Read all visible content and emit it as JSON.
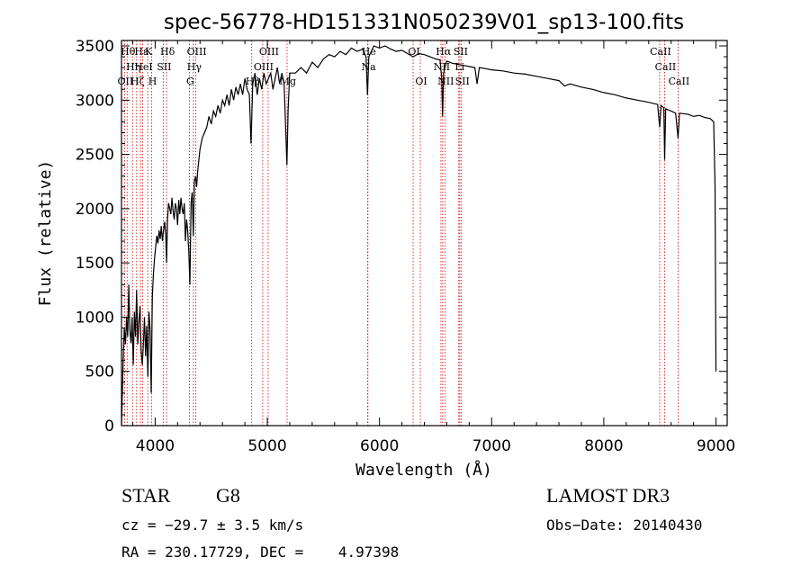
{
  "chart_data": {
    "type": "line",
    "title": "spec-56778-HD151331N050239V01_sp13-100.fits",
    "xlabel": "Wavelength (Å)",
    "ylabel": "Flux (relative)",
    "xlim": [
      3700,
      9100
    ],
    "ylim": [
      0,
      3550
    ],
    "xticks": [
      4000,
      5000,
      6000,
      7000,
      8000,
      9000
    ],
    "yticks": [
      0,
      500,
      1000,
      1500,
      2000,
      2500,
      3000,
      3500
    ],
    "series": [
      {
        "name": "flux",
        "points": [
          [
            3700,
            0
          ],
          [
            3705,
            180
          ],
          [
            3715,
            620
          ],
          [
            3725,
            900
          ],
          [
            3735,
            750
          ],
          [
            3745,
            1000
          ],
          [
            3755,
            820
          ],
          [
            3765,
            1300
          ],
          [
            3775,
            880
          ],
          [
            3785,
            760
          ],
          [
            3795,
            1000
          ],
          [
            3805,
            560
          ],
          [
            3815,
            1050
          ],
          [
            3825,
            820
          ],
          [
            3835,
            1250
          ],
          [
            3845,
            750
          ],
          [
            3855,
            950
          ],
          [
            3865,
            1100
          ],
          [
            3875,
            700
          ],
          [
            3885,
            560
          ],
          [
            3895,
            750
          ],
          [
            3905,
            1000
          ],
          [
            3915,
            640
          ],
          [
            3925,
            920
          ],
          [
            3935,
            450
          ],
          [
            3945,
            1050
          ],
          [
            3955,
            880
          ],
          [
            3965,
            300
          ],
          [
            3975,
            1200
          ],
          [
            3985,
            1400
          ],
          [
            3995,
            1550
          ],
          [
            4005,
            1650
          ],
          [
            4015,
            1750
          ],
          [
            4025,
            1680
          ],
          [
            4035,
            1800
          ],
          [
            4045,
            1720
          ],
          [
            4055,
            1840
          ],
          [
            4065,
            1700
          ],
          [
            4075,
            1800
          ],
          [
            4085,
            1880
          ],
          [
            4095,
            1750
          ],
          [
            4102,
            1500
          ],
          [
            4110,
            1900
          ],
          [
            4120,
            2050
          ],
          [
            4130,
            2000
          ],
          [
            4140,
            1950
          ],
          [
            4150,
            2100
          ],
          [
            4160,
            1980
          ],
          [
            4170,
            1900
          ],
          [
            4180,
            2050
          ],
          [
            4190,
            2000
          ],
          [
            4200,
            1850
          ],
          [
            4210,
            2080
          ],
          [
            4220,
            1950
          ],
          [
            4230,
            2100
          ],
          [
            4240,
            2000
          ],
          [
            4250,
            1950
          ],
          [
            4260,
            2050
          ],
          [
            4270,
            1700
          ],
          [
            4280,
            1900
          ],
          [
            4290,
            1800
          ],
          [
            4300,
            1600
          ],
          [
            4310,
            1300
          ],
          [
            4320,
            2050
          ],
          [
            4330,
            2150
          ],
          [
            4340,
            1750
          ],
          [
            4350,
            2250
          ],
          [
            4360,
            2300
          ],
          [
            4370,
            2200
          ],
          [
            4380,
            2350
          ],
          [
            4390,
            2450
          ],
          [
            4400,
            2550
          ],
          [
            4420,
            2650
          ],
          [
            4440,
            2700
          ],
          [
            4460,
            2750
          ],
          [
            4480,
            2850
          ],
          [
            4500,
            2780
          ],
          [
            4520,
            2900
          ],
          [
            4540,
            2850
          ],
          [
            4560,
            2950
          ],
          [
            4580,
            2880
          ],
          [
            4600,
            3000
          ],
          [
            4620,
            2950
          ],
          [
            4640,
            3050
          ],
          [
            4660,
            2950
          ],
          [
            4680,
            3100
          ],
          [
            4700,
            3000
          ],
          [
            4720,
            3120
          ],
          [
            4740,
            3050
          ],
          [
            4760,
            3150
          ],
          [
            4780,
            3050
          ],
          [
            4800,
            3200
          ],
          [
            4820,
            3100
          ],
          [
            4840,
            3050
          ],
          [
            4855,
            2600
          ],
          [
            4870,
            3150
          ],
          [
            4890,
            3250
          ],
          [
            4910,
            3050
          ],
          [
            4930,
            3200
          ],
          [
            4950,
            3100
          ],
          [
            4970,
            3250
          ],
          [
            4990,
            3150
          ],
          [
            5010,
            3200
          ],
          [
            5030,
            3250
          ],
          [
            5050,
            3100
          ],
          [
            5070,
            3200
          ],
          [
            5090,
            3300
          ],
          [
            5110,
            3150
          ],
          [
            5130,
            3250
          ],
          [
            5150,
            3150
          ],
          [
            5165,
            2700
          ],
          [
            5175,
            2400
          ],
          [
            5185,
            2900
          ],
          [
            5200,
            3250
          ],
          [
            5250,
            3250
          ],
          [
            5300,
            3300
          ],
          [
            5350,
            3250
          ],
          [
            5400,
            3350
          ],
          [
            5450,
            3300
          ],
          [
            5500,
            3380
          ],
          [
            5550,
            3420
          ],
          [
            5600,
            3400
          ],
          [
            5650,
            3450
          ],
          [
            5700,
            3420
          ],
          [
            5750,
            3480
          ],
          [
            5800,
            3450
          ],
          [
            5850,
            3470
          ],
          [
            5880,
            3400
          ],
          [
            5893,
            3050
          ],
          [
            5905,
            3400
          ],
          [
            5950,
            3500
          ],
          [
            6000,
            3480
          ],
          [
            6050,
            3500
          ],
          [
            6100,
            3470
          ],
          [
            6150,
            3450
          ],
          [
            6200,
            3460
          ],
          [
            6250,
            3430
          ],
          [
            6300,
            3400
          ],
          [
            6350,
            3430
          ],
          [
            6400,
            3420
          ],
          [
            6450,
            3400
          ],
          [
            6500,
            3380
          ],
          [
            6540,
            3370
          ],
          [
            6555,
            3200
          ],
          [
            6563,
            2850
          ],
          [
            6572,
            3250
          ],
          [
            6600,
            3360
          ],
          [
            6650,
            3340
          ],
          [
            6700,
            3330
          ],
          [
            6750,
            3320
          ],
          [
            6800,
            3310
          ],
          [
            6850,
            3300
          ],
          [
            6870,
            3150
          ],
          [
            6890,
            3300
          ],
          [
            6950,
            3290
          ],
          [
            7000,
            3280
          ],
          [
            7100,
            3270
          ],
          [
            7200,
            3250
          ],
          [
            7300,
            3240
          ],
          [
            7400,
            3220
          ],
          [
            7500,
            3200
          ],
          [
            7600,
            3180
          ],
          [
            7650,
            3130
          ],
          [
            7700,
            3150
          ],
          [
            7800,
            3120
          ],
          [
            7900,
            3100
          ],
          [
            8000,
            3070
          ],
          [
            8100,
            3050
          ],
          [
            8200,
            3020
          ],
          [
            8300,
            3000
          ],
          [
            8400,
            2980
          ],
          [
            8480,
            2960
          ],
          [
            8498,
            2750
          ],
          [
            8510,
            2950
          ],
          [
            8535,
            2930
          ],
          [
            8542,
            2450
          ],
          [
            8552,
            2920
          ],
          [
            8600,
            2900
          ],
          [
            8640,
            2880
          ],
          [
            8662,
            2650
          ],
          [
            8675,
            2880
          ],
          [
            8750,
            2870
          ],
          [
            8800,
            2850
          ],
          [
            8850,
            2860
          ],
          [
            8900,
            2840
          ],
          [
            8950,
            2830
          ],
          [
            8980,
            2800
          ],
          [
            8992,
            2200
          ],
          [
            9000,
            500
          ]
        ]
      }
    ],
    "annotations": [
      {
        "x": 3727,
        "tier": 0,
        "text": "OII"
      },
      {
        "x": 3750,
        "tier": 2,
        "text": "Hθ"
      },
      {
        "x": 3798,
        "tier": 1,
        "text": "Hη"
      },
      {
        "x": 3835,
        "tier": 0,
        "text": "Hζ"
      },
      {
        "x": 3869,
        "tier": 2,
        "text": "Hε"
      },
      {
        "x": 3889,
        "tier": 1,
        "text": "HeI"
      },
      {
        "x": 3934,
        "tier": 2,
        "text": "K"
      },
      {
        "x": 3969,
        "tier": 0,
        "text": "H"
      },
      {
        "x": 4072,
        "tier": 1,
        "text": "SII"
      },
      {
        "x": 4102,
        "tier": 2,
        "text": "Hδ"
      },
      {
        "x": 4305,
        "tier": 0,
        "text": "G"
      },
      {
        "x": 4341,
        "tier": 1,
        "text": "Hγ"
      },
      {
        "x": 4363,
        "tier": 2,
        "text": "OIII"
      },
      {
        "x": 4861,
        "tier": 0,
        "text": "Hβ"
      },
      {
        "x": 4959,
        "tier": 1,
        "text": "OIII"
      },
      {
        "x": 5007,
        "tier": 2,
        "text": "OIII"
      },
      {
        "x": 5176,
        "tier": 0,
        "text": "Mg"
      },
      {
        "x": 5895,
        "tier": 1,
        "text": "Na"
      },
      {
        "x": 5897,
        "tier": 2,
        "text": "He"
      },
      {
        "x": 6300,
        "tier": 2,
        "text": "OI"
      },
      {
        "x": 6364,
        "tier": 0,
        "text": "OI"
      },
      {
        "x": 6548,
        "tier": 1,
        "text": "NII"
      },
      {
        "x": 6563,
        "tier": 2,
        "text": "Hα"
      },
      {
        "x": 6583,
        "tier": 0,
        "text": "NII"
      },
      {
        "x": 6707,
        "tier": 1,
        "text": "Li"
      },
      {
        "x": 6716,
        "tier": 2,
        "text": "SII"
      },
      {
        "x": 6731,
        "tier": 0,
        "text": "SII"
      },
      {
        "x": 8498,
        "tier": 2,
        "text": "CaII"
      },
      {
        "x": 8542,
        "tier": 1,
        "text": "CaII"
      },
      {
        "x": 8662,
        "tier": 0,
        "text": "CaII"
      }
    ],
    "line_color": "#000000",
    "marker_color": "#cc0000"
  },
  "info": {
    "class_label": "STAR",
    "subclass": "G8",
    "survey": "LAMOST DR3",
    "cz": "cz = −29.7 ± 3.5 km/s",
    "obs_date": "Obs−Date: 20140430",
    "coords": "RA = 230.17729, DEC =    4.97398"
  }
}
